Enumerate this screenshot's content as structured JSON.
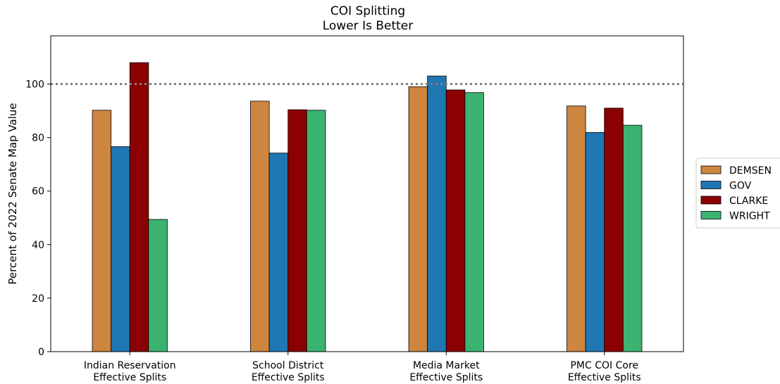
{
  "chart_data": {
    "type": "bar",
    "title": "COI Splitting",
    "subtitle": "Lower Is Better",
    "xlabel": "",
    "ylabel": "Percent of 2022 Senate Map Value",
    "ylim": [
      0,
      118
    ],
    "yticks": [
      0,
      20,
      40,
      60,
      80,
      100
    ],
    "reference_line": 100,
    "categories": [
      [
        "Indian Reservation",
        "Effective Splits"
      ],
      [
        "School District",
        "Effective Splits"
      ],
      [
        "Media Market",
        "Effective Splits"
      ],
      [
        "PMC COI Core",
        "Effective Splits"
      ]
    ],
    "series": [
      {
        "name": "DEMSEN",
        "color": "#cd853f",
        "values": [
          90.2,
          93.6,
          99.0,
          91.8
        ]
      },
      {
        "name": "GOV",
        "color": "#1f77b4",
        "values": [
          76.6,
          74.2,
          103.0,
          81.9
        ]
      },
      {
        "name": "CLARKE",
        "color": "#8b0000",
        "values": [
          108.0,
          90.4,
          97.8,
          91.0
        ]
      },
      {
        "name": "WRIGHT",
        "color": "#3cb371",
        "values": [
          49.4,
          90.2,
          96.8,
          84.6
        ]
      }
    ],
    "legend_position": "right",
    "grid": false
  }
}
